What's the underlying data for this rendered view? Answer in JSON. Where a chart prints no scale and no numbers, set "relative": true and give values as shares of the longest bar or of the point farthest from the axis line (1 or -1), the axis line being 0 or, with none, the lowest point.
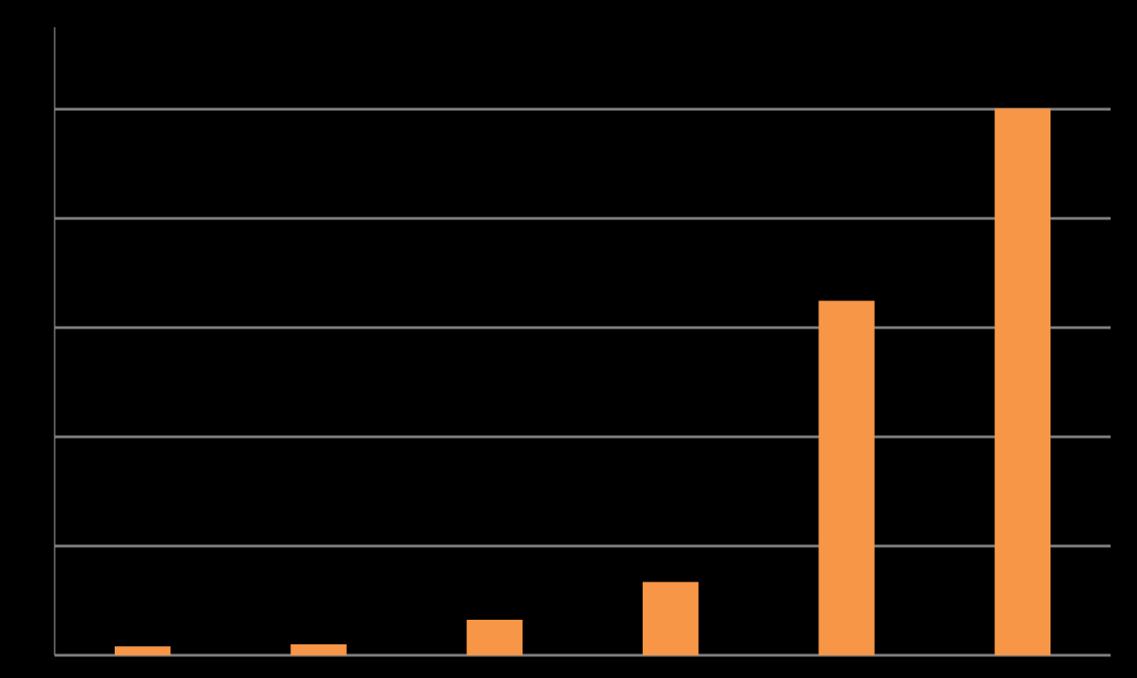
{
  "chart_data": {
    "type": "bar",
    "relative": true,
    "categories": [
      null,
      null,
      null,
      null,
      null,
      null
    ],
    "values": [
      0.015,
      0.019,
      0.064,
      0.133,
      0.648,
      1
    ],
    "color": "#f79646",
    "grid": "y"
  }
}
